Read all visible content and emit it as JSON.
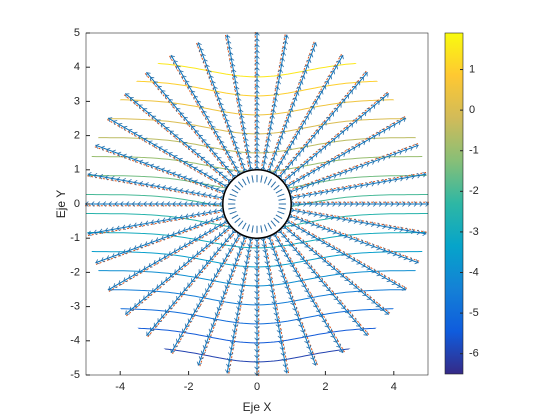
{
  "chart_data": {
    "type": "flow-field",
    "xlabel": "Eje X",
    "ylabel": "Eje Y",
    "xlim": [
      -5,
      5
    ],
    "ylim": [
      -5,
      5
    ],
    "xticks": [
      -4,
      -2,
      0,
      2,
      4
    ],
    "yticks": [
      -5,
      -4,
      -3,
      -2,
      -1,
      0,
      1,
      2,
      3,
      4,
      5
    ],
    "clim": [
      -6.5,
      1.9
    ],
    "cticks": [
      1,
      0,
      -1,
      -2,
      -3,
      -4,
      -5,
      -6
    ],
    "levels": [
      -6,
      -5.5,
      -5,
      -4.5,
      -4,
      -3.5,
      -3,
      -2.5,
      -2,
      -1.5,
      -1,
      -0.5,
      0,
      0.5,
      1,
      1.5
    ],
    "circle_radius": 1,
    "streamline_angles": [
      0,
      10,
      20,
      30,
      40,
      50,
      60,
      70,
      80,
      90,
      100,
      110,
      120,
      130,
      140,
      150,
      160,
      170,
      180,
      190,
      200,
      210,
      220,
      230,
      240,
      250,
      260,
      270,
      280,
      290,
      300,
      310,
      320,
      330,
      340,
      350
    ],
    "colormap": [
      "#352a87",
      "#0f5cdd",
      "#1481d6",
      "#06a4ca",
      "#2eb7a4",
      "#87bf77",
      "#d1bb59",
      "#fec832",
      "#f9fb0e"
    ],
    "streamline_color": "#0072bd",
    "quiver_color": "#d95319"
  }
}
